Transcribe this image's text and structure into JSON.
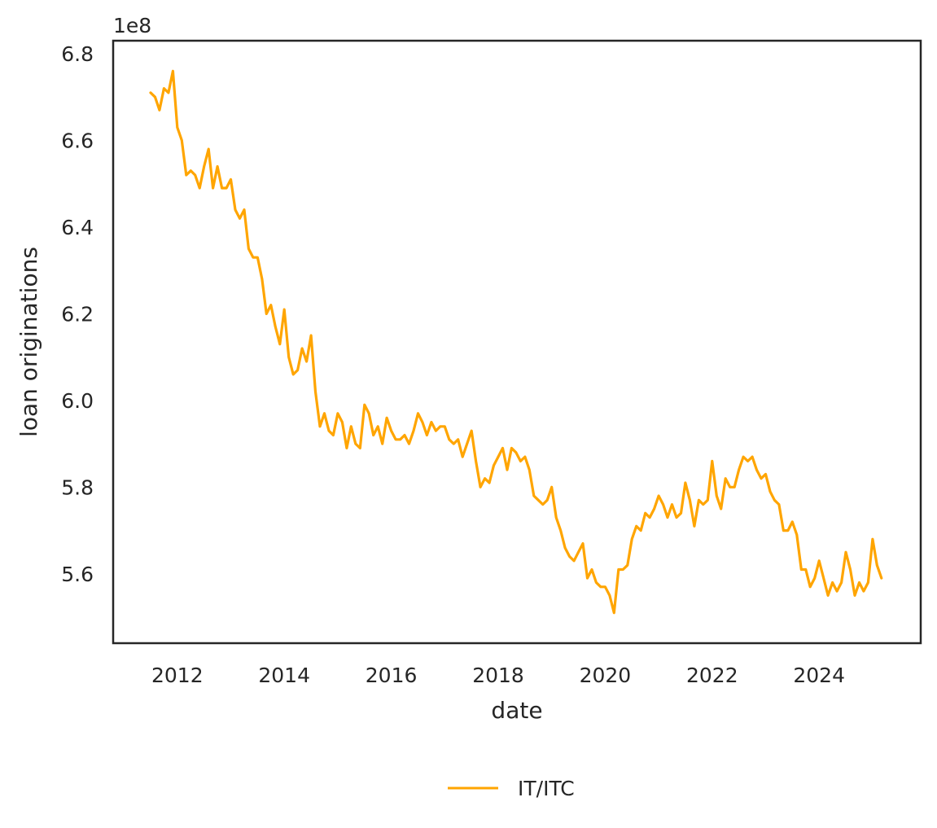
{
  "chart_data": {
    "type": "line",
    "xlabel": "date",
    "ylabel": "loan originations",
    "y_offset_label": "1e8",
    "xlim": [
      2010.8,
      2025.9
    ],
    "ylim": [
      5.44,
      6.83
    ],
    "x_ticks": [
      2012,
      2014,
      2016,
      2018,
      2020,
      2022,
      2024
    ],
    "x_tick_labels": [
      "2012",
      "2014",
      "2016",
      "2018",
      "2020",
      "2022",
      "2024"
    ],
    "y_ticks": [
      5.6,
      5.8,
      6.0,
      6.2,
      6.4,
      6.6,
      6.8
    ],
    "y_tick_labels": [
      "5.6",
      "5.8",
      "6.0",
      "6.2",
      "6.4",
      "6.6",
      "6.8"
    ],
    "grid": false,
    "legend_position": "bottom-center",
    "series": [
      {
        "name": "IT/ITC",
        "color": "#FFA500",
        "x": [
          "2011-07",
          "2011-08",
          "2011-09",
          "2011-10",
          "2011-11",
          "2011-12",
          "2012-01",
          "2012-02",
          "2012-03",
          "2012-04",
          "2012-05",
          "2012-06",
          "2012-07",
          "2012-08",
          "2012-09",
          "2012-10",
          "2012-11",
          "2012-12",
          "2013-01",
          "2013-02",
          "2013-03",
          "2013-04",
          "2013-05",
          "2013-06",
          "2013-07",
          "2013-08",
          "2013-09",
          "2013-10",
          "2013-11",
          "2013-12",
          "2014-01",
          "2014-02",
          "2014-03",
          "2014-04",
          "2014-05",
          "2014-06",
          "2014-07",
          "2014-08",
          "2014-09",
          "2014-10",
          "2014-11",
          "2014-12",
          "2015-01",
          "2015-02",
          "2015-03",
          "2015-04",
          "2015-05",
          "2015-06",
          "2015-07",
          "2015-08",
          "2015-09",
          "2015-10",
          "2015-11",
          "2015-12",
          "2016-01",
          "2016-02",
          "2016-03",
          "2016-04",
          "2016-05",
          "2016-06",
          "2016-07",
          "2016-08",
          "2016-09",
          "2016-10",
          "2016-11",
          "2016-12",
          "2017-01",
          "2017-02",
          "2017-03",
          "2017-04",
          "2017-05",
          "2017-06",
          "2017-07",
          "2017-08",
          "2017-09",
          "2017-10",
          "2017-11",
          "2017-12",
          "2018-01",
          "2018-02",
          "2018-03",
          "2018-04",
          "2018-05",
          "2018-06",
          "2018-07",
          "2018-08",
          "2018-09",
          "2018-10",
          "2018-11",
          "2018-12",
          "2019-01",
          "2019-02",
          "2019-03",
          "2019-04",
          "2019-05",
          "2019-06",
          "2019-07",
          "2019-08",
          "2019-09",
          "2019-10",
          "2019-11",
          "2019-12",
          "2020-01",
          "2020-02",
          "2020-03",
          "2020-04",
          "2020-05",
          "2020-06",
          "2020-07",
          "2020-08",
          "2020-09",
          "2020-10",
          "2020-11",
          "2020-12",
          "2021-01",
          "2021-02",
          "2021-03",
          "2021-04",
          "2021-05",
          "2021-06",
          "2021-07",
          "2021-08",
          "2021-09",
          "2021-10",
          "2021-11",
          "2021-12",
          "2022-01",
          "2022-02",
          "2022-03",
          "2022-04",
          "2022-05",
          "2022-06",
          "2022-07",
          "2022-08",
          "2022-09",
          "2022-10",
          "2022-11",
          "2022-12",
          "2023-01",
          "2023-02",
          "2023-03",
          "2023-04",
          "2023-05",
          "2023-06",
          "2023-07",
          "2023-08",
          "2023-09",
          "2023-10",
          "2023-11",
          "2023-12",
          "2024-01",
          "2024-02",
          "2024-03",
          "2024-04",
          "2024-05",
          "2024-06",
          "2024-07",
          "2024-08",
          "2024-09",
          "2024-10",
          "2024-11",
          "2024-12",
          "2025-01",
          "2025-02",
          "2025-03"
        ],
        "y": [
          6.71,
          6.7,
          6.67,
          6.72,
          6.71,
          6.76,
          6.63,
          6.6,
          6.52,
          6.53,
          6.52,
          6.49,
          6.54,
          6.58,
          6.49,
          6.54,
          6.49,
          6.49,
          6.51,
          6.44,
          6.42,
          6.44,
          6.35,
          6.33,
          6.33,
          6.28,
          6.2,
          6.22,
          6.17,
          6.13,
          6.21,
          6.1,
          6.06,
          6.07,
          6.12,
          6.09,
          6.15,
          6.02,
          5.94,
          5.97,
          5.93,
          5.92,
          5.97,
          5.95,
          5.89,
          5.94,
          5.9,
          5.89,
          5.99,
          5.97,
          5.92,
          5.94,
          5.9,
          5.96,
          5.93,
          5.91,
          5.91,
          5.92,
          5.9,
          5.93,
          5.97,
          5.95,
          5.92,
          5.95,
          5.93,
          5.94,
          5.94,
          5.91,
          5.9,
          5.91,
          5.87,
          5.9,
          5.93,
          5.86,
          5.8,
          5.82,
          5.81,
          5.85,
          5.87,
          5.89,
          5.84,
          5.89,
          5.88,
          5.86,
          5.87,
          5.84,
          5.78,
          5.77,
          5.76,
          5.77,
          5.8,
          5.73,
          5.7,
          5.66,
          5.64,
          5.63,
          5.65,
          5.67,
          5.59,
          5.61,
          5.58,
          5.57,
          5.57,
          5.55,
          5.51,
          5.61,
          5.61,
          5.62,
          5.68,
          5.71,
          5.7,
          5.74,
          5.73,
          5.75,
          5.78,
          5.76,
          5.73,
          5.76,
          5.73,
          5.74,
          5.81,
          5.77,
          5.71,
          5.77,
          5.76,
          5.77,
          5.86,
          5.78,
          5.75,
          5.82,
          5.8,
          5.8,
          5.84,
          5.87,
          5.86,
          5.87,
          5.84,
          5.82,
          5.83,
          5.79,
          5.77,
          5.76,
          5.7,
          5.7,
          5.72,
          5.69,
          5.61,
          5.61,
          5.57,
          5.59,
          5.63,
          5.59,
          5.55,
          5.58,
          5.56,
          5.58,
          5.65,
          5.61,
          5.55,
          5.58,
          5.56,
          5.58,
          5.68,
          5.62,
          5.59
        ]
      }
    ]
  }
}
